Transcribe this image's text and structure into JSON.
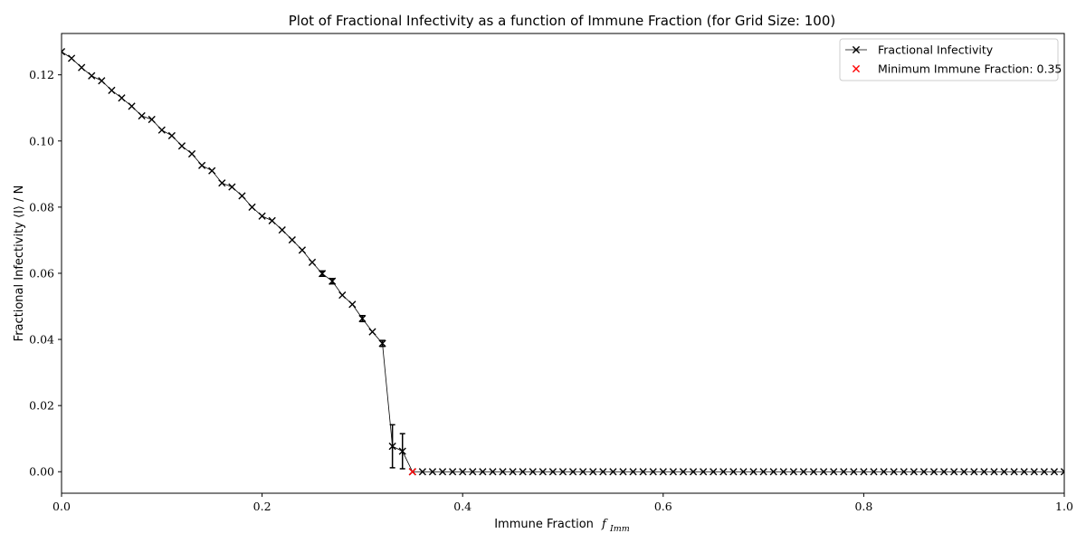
{
  "chart_data": {
    "type": "line",
    "title": "Plot of Fractional Infectivity as a function of Immune Fraction (for Grid Size: 100)",
    "xlabel": "Immune Fraction",
    "xlabel_math": "f",
    "xlabel_math_sub": "Imm",
    "ylabel": "Fractional Infectivity ⟨I⟩ / N",
    "xlim": [
      0.0,
      1.0
    ],
    "ylim": [
      -0.0065,
      0.1325
    ],
    "x_ticks": [
      0.0,
      0.2,
      0.4,
      0.6,
      0.8,
      1.0
    ],
    "x_tick_labels": [
      "0.0",
      "0.2",
      "0.4",
      "0.6",
      "0.8",
      "1.0"
    ],
    "y_ticks": [
      0.0,
      0.02,
      0.04,
      0.06,
      0.08,
      0.1,
      0.12
    ],
    "y_tick_labels": [
      "0.00",
      "0.02",
      "0.04",
      "0.06",
      "0.08",
      "0.10",
      "0.12"
    ],
    "grid": false,
    "legend_position": "top-right",
    "series": [
      {
        "name": "Fractional Infectivity",
        "color": "#000000",
        "marker": "x",
        "x": [
          0.0,
          0.01,
          0.02,
          0.03,
          0.04,
          0.05,
          0.06,
          0.07,
          0.08,
          0.09,
          0.1,
          0.11,
          0.12,
          0.13,
          0.14,
          0.15,
          0.16,
          0.17,
          0.18,
          0.19,
          0.2,
          0.21,
          0.22,
          0.23,
          0.24,
          0.25,
          0.26,
          0.27,
          0.28,
          0.29,
          0.3,
          0.31,
          0.32,
          0.33,
          0.34,
          0.35,
          0.36,
          0.37,
          0.38,
          0.39,
          0.4,
          0.41,
          0.42,
          0.43,
          0.44,
          0.45,
          0.46,
          0.47,
          0.48,
          0.49,
          0.5,
          0.51,
          0.52,
          0.53,
          0.54,
          0.55,
          0.56,
          0.57,
          0.58,
          0.59,
          0.6,
          0.61,
          0.62,
          0.63,
          0.64,
          0.65,
          0.66,
          0.67,
          0.68,
          0.69,
          0.7,
          0.71,
          0.72,
          0.73,
          0.74,
          0.75,
          0.76,
          0.77,
          0.78,
          0.79,
          0.8,
          0.81,
          0.82,
          0.83,
          0.84,
          0.85,
          0.86,
          0.87,
          0.88,
          0.89,
          0.9,
          0.91,
          0.92,
          0.93,
          0.94,
          0.95,
          0.96,
          0.97,
          0.98,
          0.99,
          1.0
        ],
        "y": [
          0.127,
          0.125,
          0.1222,
          0.1197,
          0.1182,
          0.1153,
          0.113,
          0.1105,
          0.1076,
          0.1065,
          0.1033,
          0.1016,
          0.0985,
          0.0961,
          0.0926,
          0.091,
          0.0873,
          0.0861,
          0.0834,
          0.08,
          0.0773,
          0.0759,
          0.0731,
          0.0701,
          0.067,
          0.0633,
          0.0599,
          0.0576,
          0.0534,
          0.0506,
          0.0463,
          0.0423,
          0.0388,
          0.0077,
          0.0062,
          0.0,
          0.0,
          0.0,
          0.0,
          0.0,
          0.0,
          0.0,
          0.0,
          0.0,
          0.0,
          0.0,
          0.0,
          0.0,
          0.0,
          0.0,
          0.0,
          0.0,
          0.0,
          0.0,
          0.0,
          0.0,
          0.0,
          0.0,
          0.0,
          0.0,
          0.0,
          0.0,
          0.0,
          0.0,
          0.0,
          0.0,
          0.0,
          0.0,
          0.0,
          0.0,
          0.0,
          0.0,
          0.0,
          0.0,
          0.0,
          0.0,
          0.0,
          0.0,
          0.0,
          0.0,
          0.0,
          0.0,
          0.0,
          0.0,
          0.0,
          0.0,
          0.0,
          0.0,
          0.0,
          0.0,
          0.0,
          0.0,
          0.0,
          0.0,
          0.0,
          0.0,
          0.0,
          0.0,
          0.0,
          0.0,
          0.0
        ],
        "error_bars": [
          {
            "x": 0.26,
            "err": 0.0008
          },
          {
            "x": 0.27,
            "err": 0.0008
          },
          {
            "x": 0.3,
            "err": 0.0009
          },
          {
            "x": 0.32,
            "err": 0.0009
          },
          {
            "x": 0.33,
            "err": 0.0065
          },
          {
            "x": 0.34,
            "err": 0.0053
          }
        ]
      },
      {
        "name": "Minimum Immune Fraction: 0.35",
        "color": "#ff0000",
        "marker": "x",
        "x": [
          0.35
        ],
        "y": [
          0.0
        ]
      }
    ]
  }
}
